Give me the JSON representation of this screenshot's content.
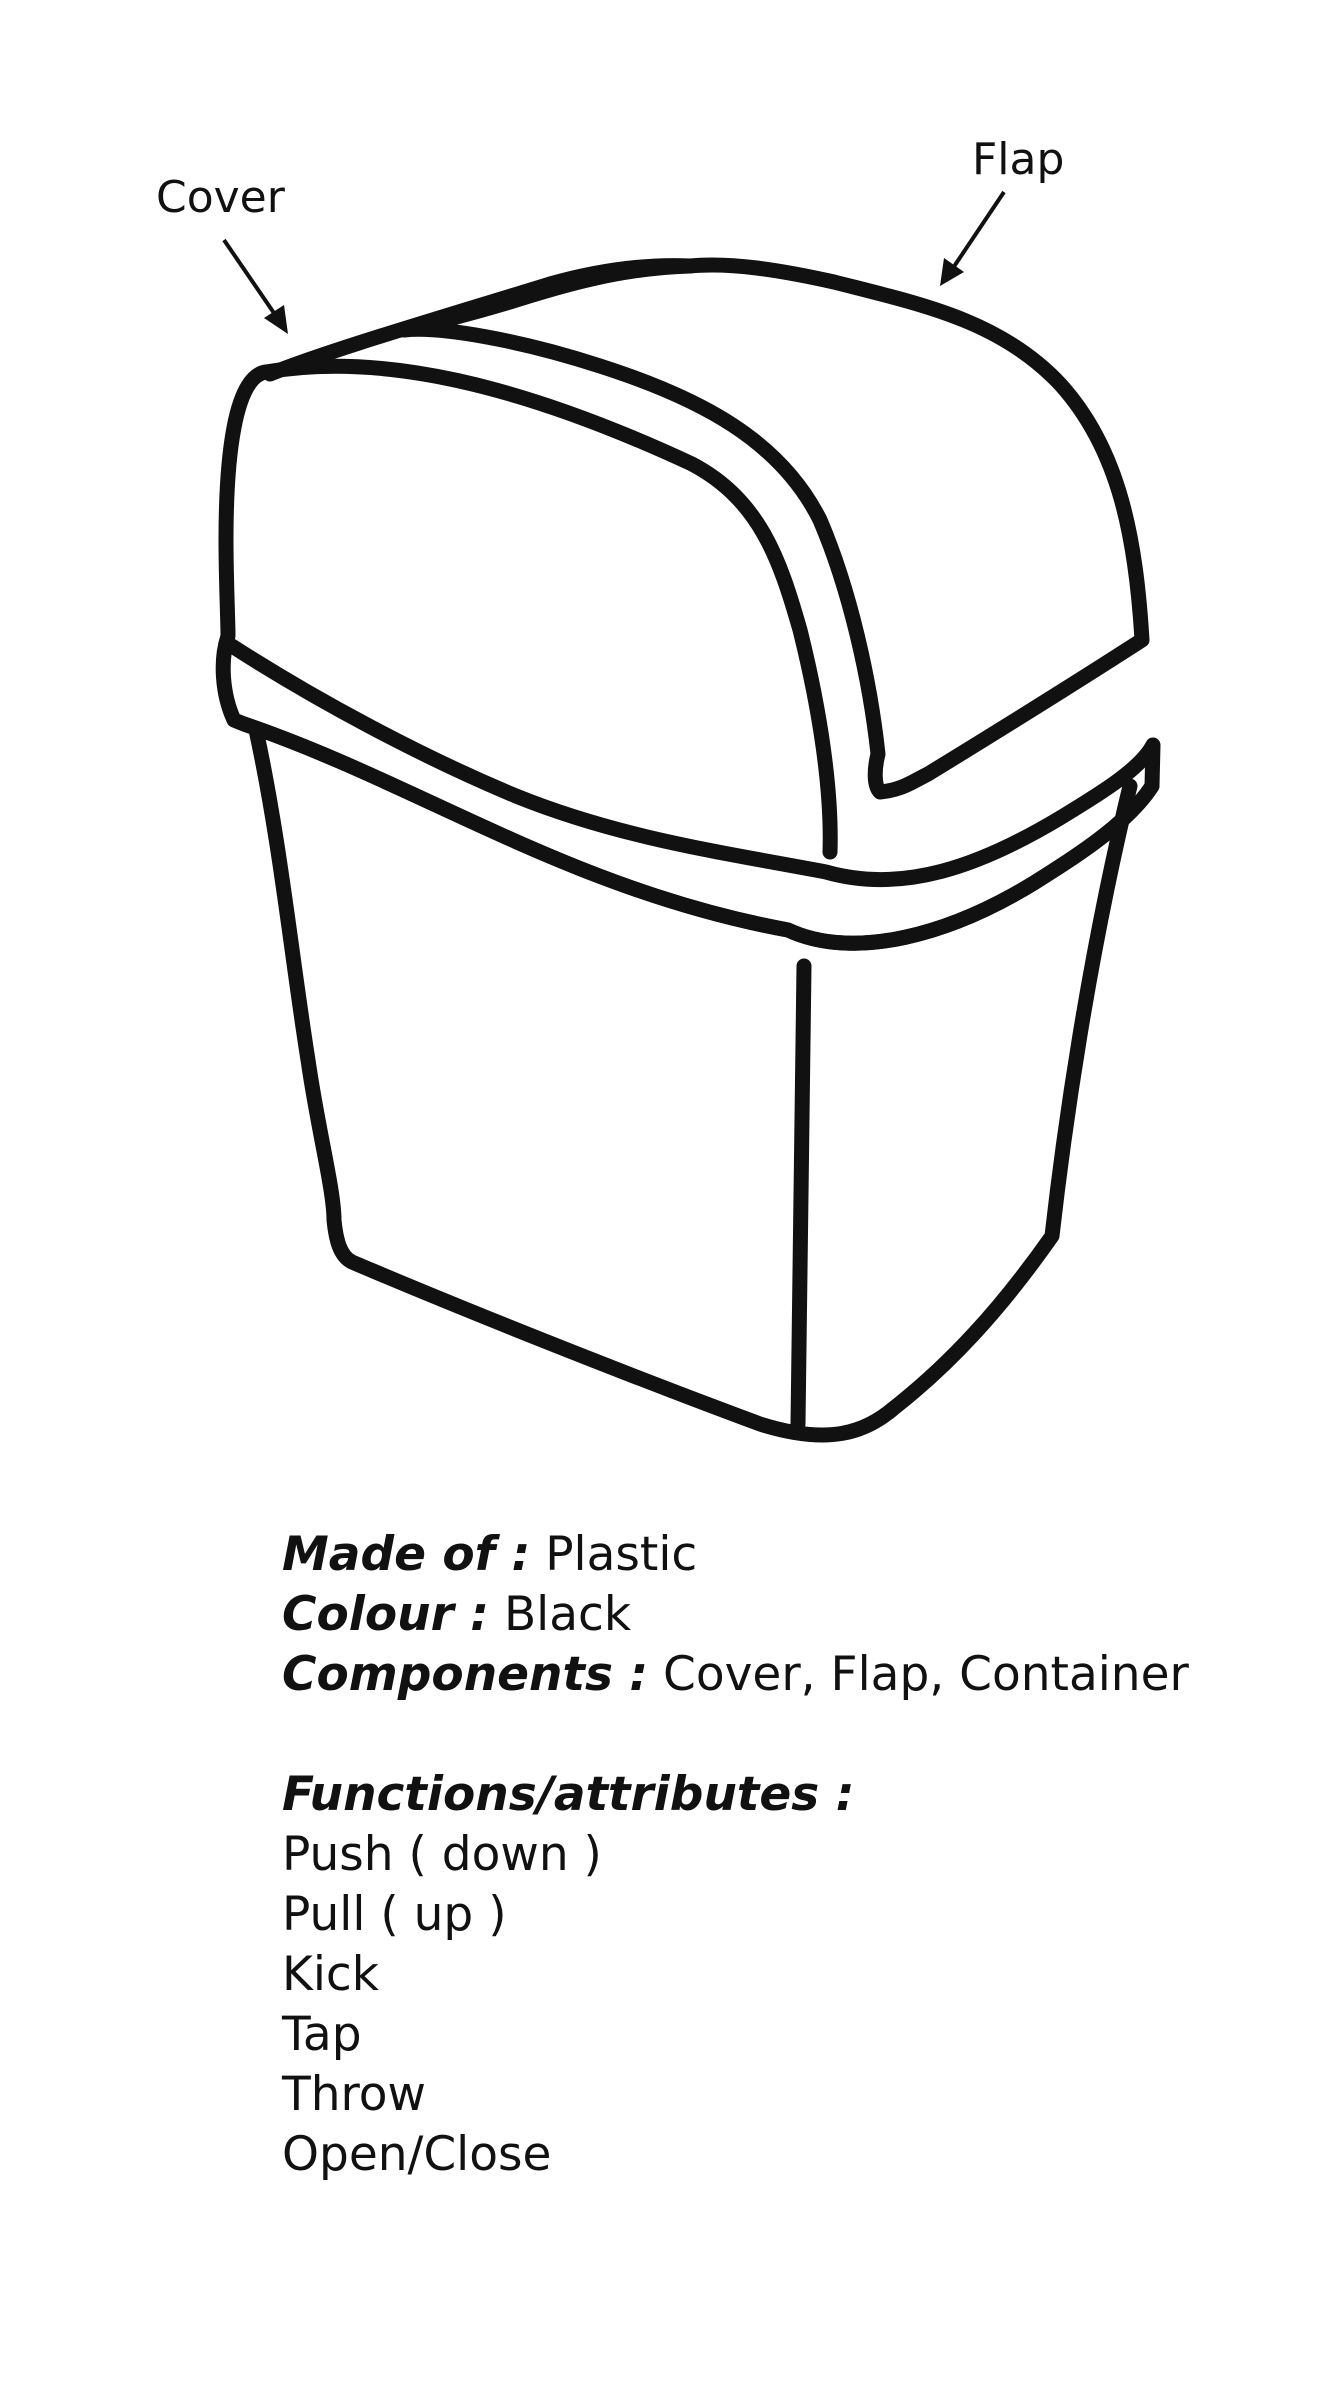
{
  "diagram": {
    "labels": {
      "cover": "Cover",
      "flap": "Flap"
    }
  },
  "specs": {
    "material": {
      "key": "Made of :",
      "value": "Plastic"
    },
    "colour": {
      "key": "Colour :",
      "value": "Black"
    },
    "components": {
      "key": "Components :",
      "value": "Cover, Flap, Container"
    },
    "functions_heading": "Functions/attributes :",
    "functions": [
      "Push ( down )",
      "Pull ( up )",
      "Kick",
      "Tap",
      "Throw",
      "Open/Close"
    ]
  }
}
